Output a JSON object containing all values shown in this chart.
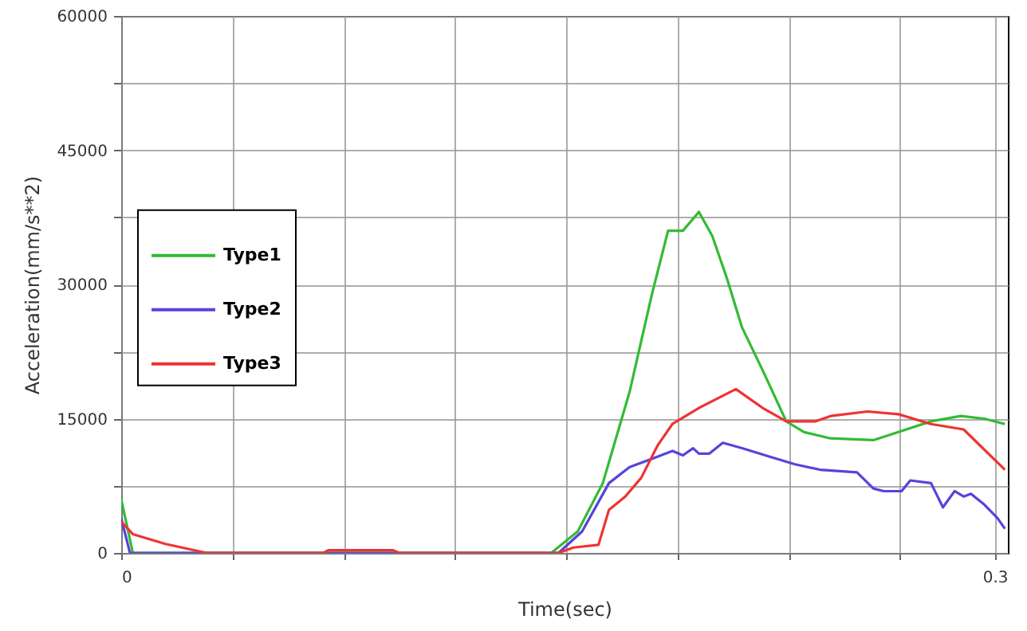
{
  "chart_data": {
    "type": "line",
    "xlabel": "Time(sec)",
    "ylabel": "Acceleration(mm/s**2)",
    "xlim": [
      0,
      0.3045
    ],
    "ylim": [
      0,
      60000
    ],
    "xticks": [
      0,
      {
        "value": 0.0382,
        "label": null
      },
      {
        "value": 0.0764,
        "label": null
      },
      {
        "value": 0.1146,
        "label": null
      },
      {
        "value": 0.1528,
        "label": null
      },
      {
        "value": 0.191,
        "label": null
      },
      {
        "value": 0.2292,
        "label": null
      },
      {
        "value": 0.2674,
        "label": null
      },
      0.3
    ],
    "yticks": [
      0,
      {
        "value": 7500,
        "label": null
      },
      15000,
      {
        "value": 22500,
        "label": null
      },
      30000,
      {
        "value": 37500,
        "label": null
      },
      45000,
      {
        "value": 52500,
        "label": null
      },
      60000
    ],
    "grid": true,
    "legend": "left",
    "line_style": "solid",
    "marker": "none",
    "series": [
      {
        "name": "Type1",
        "color": "#33bb33",
        "x": [
          0,
          0.004,
          0.1477,
          0.1568,
          0.1654,
          0.1746,
          0.1822,
          0.1878,
          0.1929,
          0.1984,
          0.203,
          0.2081,
          0.2132,
          0.2203,
          0.2284,
          0.2345,
          0.2436,
          0.2583,
          0.2669,
          0.2781,
          0.2883,
          0.2964,
          0.3035
        ],
        "values": [
          6000,
          0,
          0,
          2400,
          7800,
          18000,
          28800,
          36000,
          36000,
          38100,
          35400,
          30600,
          25200,
          20400,
          14700,
          13500,
          12800,
          12600,
          13500,
          14700,
          15300,
          15000,
          14400
        ]
      },
      {
        "name": "Type2",
        "color": "#5544dd",
        "x": [
          0,
          0.003,
          0.1502,
          0.1583,
          0.1675,
          0.1746,
          0.1822,
          0.1893,
          0.1929,
          0.1964,
          0.1984,
          0.202,
          0.2066,
          0.2132,
          0.2223,
          0.2314,
          0.24,
          0.2527,
          0.2583,
          0.2619,
          0.268,
          0.271,
          0.2781,
          0.2822,
          0.2862,
          0.2893,
          0.2918,
          0.2964,
          0.3009,
          0.3035
        ],
        "values": [
          3900,
          0,
          0,
          2400,
          7800,
          9600,
          10500,
          11400,
          10900,
          11700,
          11100,
          11100,
          12300,
          11700,
          10800,
          9900,
          9300,
          9000,
          7200,
          6900,
          6900,
          8100,
          7800,
          5100,
          6900,
          6300,
          6600,
          5400,
          3900,
          2700
        ]
      },
      {
        "name": "Type3",
        "color": "#ee3333",
        "x": [
          0,
          0.004,
          0.0152,
          0.0294,
          0.0695,
          0.0711,
          0.0934,
          0.0954,
          0.1502,
          0.1553,
          0.1639,
          0.1675,
          0.1731,
          0.1786,
          0.1842,
          0.1893,
          0.1984,
          0.2111,
          0.2203,
          0.2284,
          0.2385,
          0.2436,
          0.2563,
          0.2669,
          0.2781,
          0.2893,
          0.3035
        ],
        "values": [
          3500,
          2100,
          1000,
          0,
          0,
          300,
          300,
          0,
          0,
          600,
          900,
          4800,
          6300,
          8400,
          12000,
          14400,
          16200,
          18300,
          16200,
          14700,
          14700,
          15300,
          15800,
          15500,
          14400,
          13800,
          9300
        ]
      }
    ]
  }
}
